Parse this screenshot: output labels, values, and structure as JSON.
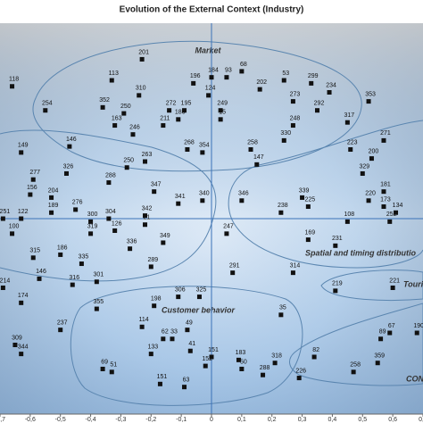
{
  "chart_data": {
    "type": "scatter",
    "title": "Evolution of the External Context (Industry)",
    "annotations": [
      "Market",
      "Spatial and timing distributio",
      "Touri",
      "Customer behavior",
      "CON"
    ],
    "marker_color": "#111111",
    "xlim": [
      -0.7,
      0.7
    ],
    "ylim": [
      -0.65,
      0.65
    ],
    "xticks": [
      {
        "value": -0.7,
        "label": "-0,7"
      },
      {
        "value": -0.6,
        "label": "-0,6"
      },
      {
        "value": -0.5,
        "label": "-0,5"
      },
      {
        "value": -0.4,
        "label": "-0,4"
      },
      {
        "value": -0.3,
        "label": "-0,3"
      },
      {
        "value": -0.2,
        "label": "-0,2"
      },
      {
        "value": -0.1,
        "label": "-0,1"
      },
      0,
      {
        "value": 0.1,
        "label": "0,1"
      },
      {
        "value": 0.2,
        "label": "0,2"
      },
      {
        "value": 0.3,
        "label": "0,3"
      },
      {
        "value": 0.4,
        "label": "0,4"
      },
      {
        "value": 0.5,
        "label": "0,5"
      },
      {
        "value": 0.6,
        "label": "0,6"
      },
      {
        "value": 0.7,
        "label": "0,7"
      }
    ],
    "point_labels": [
      "201",
      "113",
      "118",
      "310",
      "196",
      "184",
      "93",
      "68",
      "53",
      "299",
      "234",
      "202",
      "273",
      "124",
      "352",
      "250",
      "272",
      "195",
      "180",
      "249",
      "15",
      "292",
      "353",
      "254",
      "163",
      "211",
      "248",
      "317",
      "246",
      "330",
      "271",
      "146",
      "149",
      "268",
      "354",
      "258",
      "223",
      "263",
      "147",
      "200",
      "326",
      "250",
      "329",
      "277",
      "288",
      "347",
      "181",
      "204",
      "341",
      "340",
      "346",
      "339",
      "220",
      "156",
      "225",
      "238",
      "189",
      "276",
      "304",
      "342",
      "21",
      "300",
      "122",
      "251",
      "173",
      "134",
      "108",
      "252",
      "100",
      "319",
      "247",
      "126",
      "169",
      "349",
      "231",
      "315",
      "336",
      "186",
      "335",
      "289",
      "291",
      "314",
      "146",
      "301",
      "316",
      "214",
      "219",
      "221",
      "174",
      "355",
      "198",
      "306",
      "325",
      "35",
      "237",
      "114",
      "49",
      "190",
      "67",
      "89",
      "62",
      "33",
      "309",
      "41",
      "133",
      "344",
      "82",
      "318",
      "183",
      "151",
      "359",
      "69",
      "51",
      "152",
      "50",
      "288",
      "258",
      "226",
      "151",
      "63"
    ],
    "x": [
      -0.23,
      -0.33,
      -0.66,
      -0.24,
      -0.06,
      0.0,
      0.05,
      0.1,
      0.24,
      0.33,
      0.39,
      0.16,
      0.27,
      -0.01,
      -0.36,
      -0.29,
      -0.14,
      -0.09,
      -0.11,
      0.03,
      0.03,
      0.35,
      0.52,
      -0.55,
      -0.32,
      -0.16,
      0.27,
      0.45,
      -0.26,
      0.24,
      0.57,
      -0.47,
      -0.63,
      -0.08,
      -0.03,
      0.13,
      0.46,
      -0.22,
      0.15,
      0.53,
      -0.48,
      -0.28,
      0.5,
      -0.59,
      -0.34,
      -0.19,
      0.57,
      -0.53,
      -0.11,
      -0.03,
      0.1,
      0.3,
      0.52,
      -0.6,
      0.32,
      0.23,
      -0.53,
      -0.45,
      -0.34,
      -0.22,
      -0.22,
      -0.4,
      -0.63,
      -0.69,
      0.57,
      0.61,
      0.45,
      0.59,
      -0.66,
      -0.4,
      0.05,
      -0.32,
      0.32,
      -0.16,
      0.41,
      -0.59,
      -0.27,
      -0.5,
      -0.43,
      -0.2,
      0.07,
      0.27,
      -0.57,
      -0.38,
      -0.46,
      -0.69,
      0.41,
      0.6,
      -0.63,
      -0.38,
      -0.19,
      -0.11,
      -0.04,
      0.23,
      -0.5,
      -0.23,
      -0.08,
      0.68,
      0.59,
      0.56,
      -0.16,
      -0.13,
      -0.65,
      -0.07,
      -0.2,
      -0.63,
      0.34,
      0.21,
      0.09,
      0.0,
      0.55,
      -0.36,
      -0.33,
      -0.02,
      0.1,
      0.17,
      0.47,
      0.29,
      -0.17,
      -0.09
    ],
    "y": [
      0.53,
      0.46,
      0.44,
      0.41,
      0.45,
      0.47,
      0.47,
      0.49,
      0.46,
      0.45,
      0.42,
      0.43,
      0.39,
      0.41,
      0.37,
      0.35,
      0.36,
      0.36,
      0.33,
      0.36,
      0.33,
      0.36,
      0.39,
      0.36,
      0.31,
      0.31,
      0.31,
      0.32,
      0.28,
      0.26,
      0.26,
      0.24,
      0.22,
      0.23,
      0.22,
      0.23,
      0.23,
      0.19,
      0.18,
      0.2,
      0.15,
      0.17,
      0.15,
      0.13,
      0.12,
      0.09,
      0.09,
      0.07,
      0.05,
      0.06,
      0.06,
      0.07,
      0.06,
      0.08,
      0.04,
      0.02,
      0.02,
      0.03,
      0.0,
      0.01,
      -0.02,
      -0.01,
      0.0,
      0.0,
      0.04,
      0.02,
      -0.01,
      -0.01,
      -0.05,
      -0.05,
      -0.05,
      -0.04,
      -0.07,
      -0.08,
      -0.09,
      -0.13,
      -0.1,
      -0.12,
      -0.15,
      -0.16,
      -0.18,
      -0.18,
      -0.2,
      -0.21,
      -0.22,
      -0.23,
      -0.24,
      -0.23,
      -0.28,
      -0.3,
      -0.29,
      -0.26,
      -0.26,
      -0.32,
      -0.37,
      -0.36,
      -0.37,
      -0.38,
      -0.38,
      -0.4,
      -0.4,
      -0.4,
      -0.42,
      -0.44,
      -0.45,
      -0.45,
      -0.46,
      -0.48,
      -0.47,
      -0.46,
      -0.48,
      -0.5,
      -0.51,
      -0.49,
      -0.5,
      -0.52,
      -0.51,
      -0.53,
      -0.55,
      -0.56
    ]
  }
}
